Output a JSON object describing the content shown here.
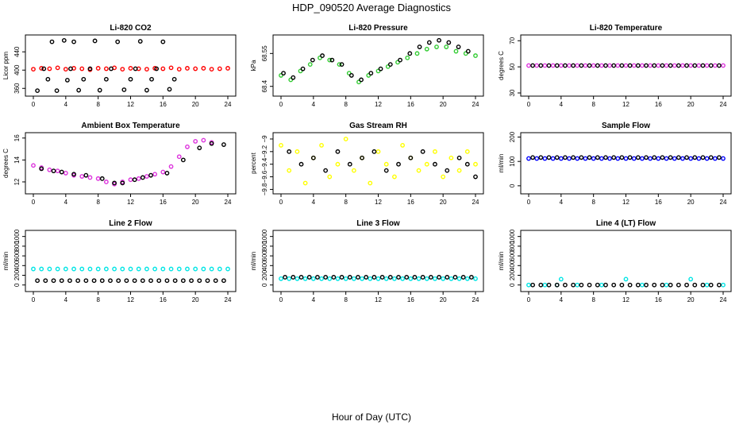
{
  "title": "HDP_090520  Average Diagnostics",
  "xcaption": "Hour of Day (UTC)",
  "chart_data": [
    {
      "type": "scatter",
      "title": "Li-820 CO2",
      "ylabel": "Licor ppm",
      "xlim": [
        0,
        24
      ],
      "ylim": [
        350,
        470
      ],
      "xticks": [
        0,
        4,
        8,
        12,
        16,
        20,
        24
      ],
      "yticks": [
        360,
        400,
        440
      ],
      "series": [
        {
          "color": "#ff0000",
          "y": [
            402,
            404,
            403,
            405,
            402,
            404,
            403,
            401,
            404,
            403,
            405,
            402,
            404,
            403,
            402,
            404,
            403,
            405,
            402,
            404,
            403,
            404,
            402,
            403,
            404
          ],
          "x": [
            0.0,
            1.0,
            2.0,
            3.0,
            4.0,
            5.0,
            6.0,
            7.0,
            8.0,
            9.0,
            10.0,
            11.0,
            12.0,
            13.0,
            14.0,
            15.0,
            16.0,
            17.0,
            18.0,
            19.0,
            20.0,
            21.0,
            22.0,
            23.0,
            24.0
          ]
        },
        {
          "color": "#000000",
          "y": [
            355,
            403,
            380,
            462,
            355,
            465,
            378,
            403,
            462,
            356,
            380,
            403,
            464,
            356,
            380,
            403,
            462,
            357,
            380,
            403,
            463,
            356,
            380,
            403,
            462,
            358,
            380
          ],
          "x": [
            0.5,
            1.3,
            1.8,
            2.3,
            2.9,
            3.8,
            4.2,
            4.6,
            5.0,
            5.6,
            6.2,
            7.0,
            7.6,
            8.2,
            9.0,
            9.6,
            10.4,
            11.2,
            12.0,
            12.6,
            13.2,
            14.0,
            14.6,
            15.2,
            16.0,
            16.8,
            17.4
          ]
        }
      ]
    },
    {
      "type": "scatter",
      "title": "Li-820 Pressure",
      "ylabel": "kPa",
      "xlim": [
        0,
        24
      ],
      "ylim": [
        68.37,
        68.62
      ],
      "xticks": [
        0,
        4,
        8,
        12,
        16,
        20,
        24
      ],
      "yticks": [
        68.4,
        68.55
      ],
      "series": [
        {
          "color": "#33cc33",
          "y": [
            68.45,
            68.43,
            68.47,
            68.5,
            68.53,
            68.52,
            68.5,
            68.46,
            68.42,
            68.45,
            68.47,
            68.49,
            68.51,
            68.53,
            68.55,
            68.57,
            68.58,
            68.58,
            68.56,
            68.55,
            68.54
          ],
          "x": [
            0.0,
            1.2,
            2.4,
            3.6,
            4.8,
            6.0,
            7.2,
            8.4,
            9.6,
            10.8,
            12.0,
            13.2,
            14.4,
            15.6,
            16.8,
            18.0,
            19.2,
            20.4,
            21.6,
            22.8,
            24.0
          ]
        },
        {
          "color": "#000000",
          "y": [
            68.46,
            68.44,
            68.48,
            68.52,
            68.54,
            68.52,
            68.5,
            68.45,
            68.43,
            68.46,
            68.48,
            68.5,
            68.52,
            68.55,
            68.58,
            68.6,
            68.61,
            68.6,
            68.58,
            68.56
          ],
          "x": [
            0.3,
            1.5,
            2.7,
            3.9,
            5.1,
            6.3,
            7.5,
            8.7,
            9.9,
            11.1,
            12.3,
            13.5,
            14.7,
            15.9,
            17.1,
            18.3,
            19.5,
            20.7,
            21.9,
            23.1
          ]
        }
      ]
    },
    {
      "type": "scatter",
      "title": "Li-820 Temperature",
      "ylabel": "degrees C",
      "xlim": [
        0,
        24
      ],
      "ylim": [
        30,
        72
      ],
      "xticks": [
        0,
        4,
        8,
        12,
        16,
        20,
        24
      ],
      "yticks": [
        30,
        50,
        70
      ],
      "series": [
        {
          "color": "#dd33dd",
          "y": [
            51,
            51,
            51,
            51,
            51,
            51,
            51,
            51,
            51,
            51,
            51,
            51,
            51,
            51,
            51,
            51,
            51,
            51,
            51,
            51,
            51,
            51,
            51,
            51,
            51
          ],
          "x": [
            0.0,
            1.0,
            2.0,
            3.0,
            4.0,
            5.0,
            6.0,
            7.0,
            8.0,
            9.0,
            10.0,
            11.0,
            12.0,
            13.0,
            14.0,
            15.0,
            16.0,
            17.0,
            18.0,
            19.0,
            20.0,
            21.0,
            22.0,
            23.0,
            24.0
          ]
        },
        {
          "color": "#000000",
          "y": [
            51,
            51,
            51,
            51,
            51,
            51,
            51,
            51,
            51,
            51,
            51,
            51,
            51,
            51,
            51,
            51,
            51,
            51,
            51,
            51,
            51,
            51,
            51,
            51
          ],
          "x": [
            0.5,
            1.5,
            2.5,
            3.5,
            4.5,
            5.5,
            6.5,
            7.5,
            8.5,
            9.5,
            10.5,
            11.5,
            12.5,
            13.5,
            14.5,
            15.5,
            16.5,
            17.5,
            18.5,
            19.5,
            20.5,
            21.5,
            22.5,
            23.5
          ]
        }
      ]
    },
    {
      "type": "scatter",
      "title": "Ambient Box Temperature",
      "ylabel": "degrees C",
      "xlim": [
        0,
        24
      ],
      "ylim": [
        11.2,
        16.2
      ],
      "xticks": [
        0,
        4,
        8,
        12,
        16,
        20,
        24
      ],
      "yticks": [
        12,
        14,
        16
      ],
      "series": [
        {
          "color": "#dd33dd",
          "y": [
            13.5,
            13.3,
            13.1,
            13.0,
            12.8,
            12.6,
            12.5,
            12.4,
            12.3,
            12.0,
            11.8,
            12.0,
            12.2,
            12.3,
            12.5,
            12.7,
            12.9,
            13.4,
            14.3,
            15.2,
            15.7,
            15.8,
            15.6
          ],
          "x": [
            0.0,
            1.0,
            2.0,
            3.0,
            4.0,
            5.0,
            6.0,
            7.0,
            8.0,
            9.0,
            10.0,
            11.0,
            12.0,
            13.0,
            14.0,
            15.0,
            16.0,
            17.0,
            18.0,
            19.0,
            20.0,
            21.0,
            22.0
          ]
        },
        {
          "color": "#000000",
          "y": [
            13.2,
            13.0,
            12.9,
            12.7,
            12.6,
            12.3,
            11.9,
            11.9,
            12.2,
            12.4,
            12.6,
            12.8,
            14.0,
            15.1,
            15.5,
            15.4
          ],
          "x": [
            1.0,
            2.5,
            3.5,
            5.0,
            6.5,
            8.5,
            10.0,
            11.0,
            12.5,
            13.5,
            14.5,
            16.5,
            18.5,
            20.5,
            22.0,
            23.5
          ]
        }
      ]
    },
    {
      "type": "scatter",
      "title": "Gas Stream RH",
      "ylabel": "percent",
      "xlim": [
        0,
        24
      ],
      "ylim": [
        -9.82,
        -8.95
      ],
      "xticks": [
        0,
        4,
        8,
        12,
        16,
        20,
        24
      ],
      "yticks": [
        -9.8,
        -9.6,
        -9.4,
        -9.2,
        -9.0
      ],
      "series": [
        {
          "color": "#ffff00",
          "y": [
            -9.1,
            -9.5,
            -9.2,
            -9.7,
            -9.3,
            -9.1,
            -9.6,
            -9.4,
            -9.0,
            -9.5,
            -9.3,
            -9.7,
            -9.2,
            -9.4,
            -9.6,
            -9.1,
            -9.3,
            -9.5,
            -9.4,
            -9.2,
            -9.6,
            -9.3,
            -9.5,
            -9.2,
            -9.4
          ],
          "x": [
            0.0,
            1.0,
            2.0,
            3.0,
            4.0,
            5.0,
            6.0,
            7.0,
            8.0,
            9.0,
            10.0,
            11.0,
            12.0,
            13.0,
            14.0,
            15.0,
            16.0,
            17.0,
            18.0,
            19.0,
            20.0,
            21.0,
            22.0,
            23.0,
            24.0
          ]
        },
        {
          "color": "#000000",
          "y": [
            -9.2,
            -9.4,
            -9.3,
            -9.5,
            -9.2,
            -9.4,
            -9.3,
            -9.2,
            -9.5,
            -9.4,
            -9.3,
            -9.2,
            -9.4,
            -9.5,
            -9.3,
            -9.4,
            -9.6
          ],
          "x": [
            1.0,
            2.5,
            4.0,
            5.5,
            7.0,
            8.5,
            10.0,
            11.5,
            13.0,
            14.5,
            16.0,
            17.5,
            19.0,
            20.5,
            22.0,
            23.0,
            24.0
          ]
        }
      ]
    },
    {
      "type": "scatter",
      "title": "Sample Flow",
      "ylabel": "ml/min",
      "xlim": [
        0,
        24
      ],
      "ylim": [
        -20,
        205
      ],
      "xticks": [
        0,
        4,
        8,
        12,
        16,
        20,
        24
      ],
      "yticks": [
        0,
        100,
        200
      ],
      "series": [
        {
          "color": "#0000ff",
          "y": [
            112,
            112,
            112,
            112,
            112,
            112,
            112,
            112,
            112,
            112,
            112,
            112,
            112,
            112,
            112,
            112,
            112,
            112,
            112,
            112,
            112,
            112,
            112,
            112,
            112
          ],
          "x": [
            0.0,
            1.0,
            2.0,
            3.0,
            4.0,
            5.0,
            6.0,
            7.0,
            8.0,
            9.0,
            10.0,
            11.0,
            12.0,
            13.0,
            14.0,
            15.0,
            16.0,
            17.0,
            18.0,
            19.0,
            20.0,
            21.0,
            22.0,
            23.0,
            24.0
          ]
        },
        {
          "color": "#000000",
          "y": [
            116,
            116,
            116,
            116,
            116,
            116,
            116,
            116,
            116,
            116,
            116,
            116,
            116,
            116,
            116,
            116,
            116,
            116,
            116,
            116,
            116,
            116,
            116,
            116
          ],
          "x": [
            0.5,
            1.5,
            2.5,
            3.5,
            4.5,
            5.5,
            6.5,
            7.5,
            8.5,
            9.5,
            10.5,
            11.5,
            12.5,
            13.5,
            14.5,
            15.5,
            16.5,
            17.5,
            18.5,
            19.5,
            20.5,
            21.5,
            22.5,
            23.5
          ]
        }
      ]
    },
    {
      "type": "scatter",
      "title": "Line 2 Flow",
      "ylabel": "ml/min",
      "xlim": [
        0,
        24
      ],
      "ylim": [
        -70,
        1060
      ],
      "xticks": [
        0,
        4,
        8,
        12,
        16,
        20,
        24
      ],
      "yticks": [
        0,
        200,
        400,
        600,
        800,
        1000
      ],
      "series": [
        {
          "color": "#00e5e5",
          "y": [
            330,
            330,
            330,
            330,
            330,
            330,
            330,
            330,
            330,
            330,
            330,
            330,
            330,
            330,
            330,
            330,
            330,
            330,
            330,
            330,
            330,
            330,
            330,
            330,
            330
          ],
          "x": [
            0.0,
            1.0,
            2.0,
            3.0,
            4.0,
            5.0,
            6.0,
            7.0,
            8.0,
            9.0,
            10.0,
            11.0,
            12.0,
            13.0,
            14.0,
            15.0,
            16.0,
            17.0,
            18.0,
            19.0,
            20.0,
            21.0,
            22.0,
            23.0,
            24.0
          ]
        },
        {
          "color": "#000000",
          "y": [
            90,
            90,
            90,
            90,
            90,
            90,
            90,
            90,
            90,
            90,
            90,
            90,
            90,
            90,
            90,
            90,
            90,
            90,
            90,
            90,
            90,
            90,
            90,
            90
          ],
          "x": [
            0.5,
            1.5,
            2.5,
            3.5,
            4.5,
            5.5,
            6.5,
            7.5,
            8.5,
            9.5,
            10.5,
            11.5,
            12.5,
            13.5,
            14.5,
            15.5,
            16.5,
            17.5,
            18.5,
            19.5,
            20.5,
            21.5,
            22.5,
            23.5
          ]
        }
      ]
    },
    {
      "type": "scatter",
      "title": "Line 3 Flow",
      "ylabel": "ml/min",
      "xlim": [
        0,
        24
      ],
      "ylim": [
        -70,
        1060
      ],
      "xticks": [
        0,
        4,
        8,
        12,
        16,
        20,
        24
      ],
      "yticks": [
        0,
        200,
        400,
        600,
        800,
        1000
      ],
      "series": [
        {
          "color": "#00e5e5",
          "y": [
            130,
            130,
            130,
            130,
            130,
            130,
            130,
            130,
            130,
            130,
            130,
            130,
            130,
            130,
            130,
            130,
            130,
            130,
            130,
            130,
            130,
            130,
            130,
            130,
            130
          ],
          "x": [
            0.0,
            1.0,
            2.0,
            3.0,
            4.0,
            5.0,
            6.0,
            7.0,
            8.0,
            9.0,
            10.0,
            11.0,
            12.0,
            13.0,
            14.0,
            15.0,
            16.0,
            17.0,
            18.0,
            19.0,
            20.0,
            21.0,
            22.0,
            23.0,
            24.0
          ]
        },
        {
          "color": "#000000",
          "y": [
            160,
            160,
            160,
            160,
            160,
            160,
            160,
            160,
            160,
            160,
            160,
            160,
            160,
            160,
            160,
            160,
            160,
            160,
            160,
            160,
            160,
            160,
            160,
            160
          ],
          "x": [
            0.5,
            1.5,
            2.5,
            3.5,
            4.5,
            5.5,
            6.5,
            7.5,
            8.5,
            9.5,
            10.5,
            11.5,
            12.5,
            13.5,
            14.5,
            15.5,
            16.5,
            17.5,
            18.5,
            19.5,
            20.5,
            21.5,
            22.5,
            23.5
          ]
        }
      ]
    },
    {
      "type": "scatter",
      "title": "Line 4 (LT) Flow",
      "ylabel": "ml/min",
      "xlim": [
        0,
        24
      ],
      "ylim": [
        -70,
        1060
      ],
      "xticks": [
        0,
        4,
        8,
        12,
        16,
        20,
        24
      ],
      "yticks": [
        0,
        200,
        400,
        600,
        800,
        1000
      ],
      "series": [
        {
          "color": "#00e5e5",
          "y": [
            0,
            0,
            0,
            120,
            0,
            0,
            120,
            0,
            0,
            120,
            0,
            0
          ],
          "x": [
            0.0,
            2.0,
            3.5,
            4.0,
            6.0,
            9.0,
            12.0,
            14.0,
            17.0,
            20.0,
            22.0,
            24.0
          ]
        },
        {
          "color": "#000000",
          "y": [
            0,
            0,
            0,
            0,
            0,
            0,
            0,
            0,
            0,
            0,
            0,
            0,
            0,
            0,
            0,
            0,
            0,
            0,
            0,
            0,
            0,
            0,
            0,
            0
          ],
          "x": [
            0.5,
            1.5,
            2.5,
            3.5,
            4.5,
            5.5,
            6.5,
            7.5,
            8.5,
            9.5,
            10.5,
            11.5,
            12.5,
            13.5,
            14.5,
            15.5,
            16.5,
            17.5,
            18.5,
            19.5,
            20.5,
            21.5,
            22.5,
            23.5
          ]
        }
      ]
    }
  ]
}
